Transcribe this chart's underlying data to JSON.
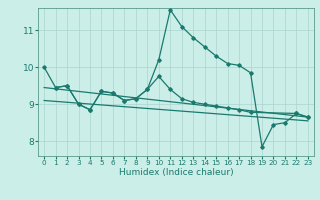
{
  "xlabel": "Humidex (Indice chaleur)",
  "xlim": [
    -0.5,
    23.5
  ],
  "ylim": [
    7.6,
    11.6
  ],
  "yticks": [
    8,
    9,
    10,
    11
  ],
  "xticks": [
    0,
    1,
    2,
    3,
    4,
    5,
    6,
    7,
    8,
    9,
    10,
    11,
    12,
    13,
    14,
    15,
    16,
    17,
    18,
    19,
    20,
    21,
    22,
    23
  ],
  "bg_color": "#cceee8",
  "line_color": "#1a7a6e",
  "line1_x": [
    0,
    1,
    2,
    3,
    4,
    5,
    6,
    7,
    8,
    9,
    10,
    11,
    12,
    13,
    14,
    15,
    16,
    17,
    18,
    19,
    20,
    21,
    22,
    23
  ],
  "line1_y": [
    10.0,
    9.45,
    9.5,
    9.0,
    8.85,
    9.35,
    9.3,
    9.1,
    9.15,
    9.4,
    10.2,
    11.55,
    11.1,
    10.8,
    10.55,
    10.3,
    10.1,
    10.05,
    9.85,
    7.85,
    8.45,
    8.5,
    8.75,
    8.65
  ],
  "line2_x": [
    1,
    2,
    3,
    4,
    5,
    6,
    7,
    8,
    9,
    10,
    11,
    12,
    13,
    14,
    15,
    16,
    17,
    18,
    22,
    23
  ],
  "line2_y": [
    9.45,
    9.5,
    9.0,
    8.85,
    9.35,
    9.3,
    9.1,
    9.15,
    9.4,
    9.75,
    9.4,
    9.15,
    9.05,
    9.0,
    8.95,
    8.9,
    8.85,
    8.78,
    8.75,
    8.65
  ],
  "line3_x": [
    0,
    23
  ],
  "line3_y": [
    9.45,
    8.65
  ],
  "line4_x": [
    0,
    23
  ],
  "line4_y": [
    9.1,
    8.55
  ]
}
